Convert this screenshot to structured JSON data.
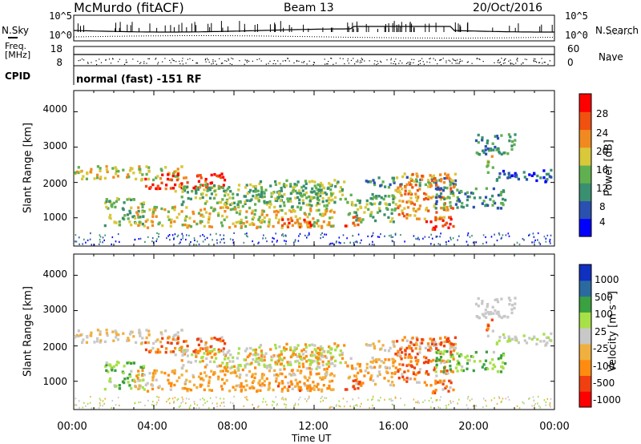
{
  "header": {
    "title": "McMurdo (fitACF)",
    "beam": "Beam 13",
    "date": "20/Oct/2016",
    "cpid_label": "CPID",
    "cpid_text": "normal (fast) -151 RF"
  },
  "colors": {
    "power_scale": [
      "#0000ff",
      "#2a50b0",
      "#3a8f70",
      "#60b050",
      "#d8c83a",
      "#f08a20",
      "#f05010",
      "#ff0000"
    ],
    "velocity_scale": [
      "#ff0000",
      "#f04010",
      "#ff8c10",
      "#f0b040",
      "#c8c8c8",
      "#a8e048",
      "#3aa040",
      "#2a6aa0",
      "#1030c0"
    ]
  },
  "chart_data": [
    {
      "type": "line",
      "name": "panel-nsky-nsearch",
      "ylabel_left": "N.Sky",
      "ylabel_right": "N.Search",
      "yticks_left": [
        "10^5",
        "10^0"
      ],
      "yticks_right": [
        "10^5",
        "10^0"
      ]
    },
    {
      "type": "line",
      "name": "panel-freq-nave",
      "ylabel_left": "Freq.\n[MHz]",
      "ylabel_right": "Nave",
      "yticks_left": [
        "18",
        "8"
      ],
      "yticks_right": [
        "60",
        "0"
      ]
    },
    {
      "type": "heatmap",
      "name": "panel-power",
      "ylabel": "Slant Range [km]",
      "colorbar_label": "Power [dB]",
      "colorbar_ticks": [
        "28",
        "24",
        "20",
        "16",
        "12",
        "8",
        "4"
      ],
      "ylim": [
        200,
        4600
      ],
      "yticks": [
        "4000",
        "3000",
        "2000",
        "1000"
      ],
      "xlim": [
        0,
        24
      ]
    },
    {
      "type": "heatmap",
      "name": "panel-velocity",
      "ylabel": "Slant Range [km]",
      "colorbar_label": "Velocity [m s⁻¹]",
      "colorbar_ticks": [
        "1000",
        "500",
        "100",
        "25",
        "-25",
        "-100",
        "-500",
        "-1000"
      ],
      "ylim": [
        200,
        4600
      ],
      "yticks": [
        "4000",
        "3000",
        "2000",
        "1000"
      ],
      "xlim": [
        0,
        24
      ]
    }
  ],
  "xaxis": {
    "xlabel": "Time UT",
    "xticks": [
      "00:00",
      "04:00",
      "08:00",
      "12:00",
      "16:00",
      "20:00",
      "00:00"
    ]
  }
}
